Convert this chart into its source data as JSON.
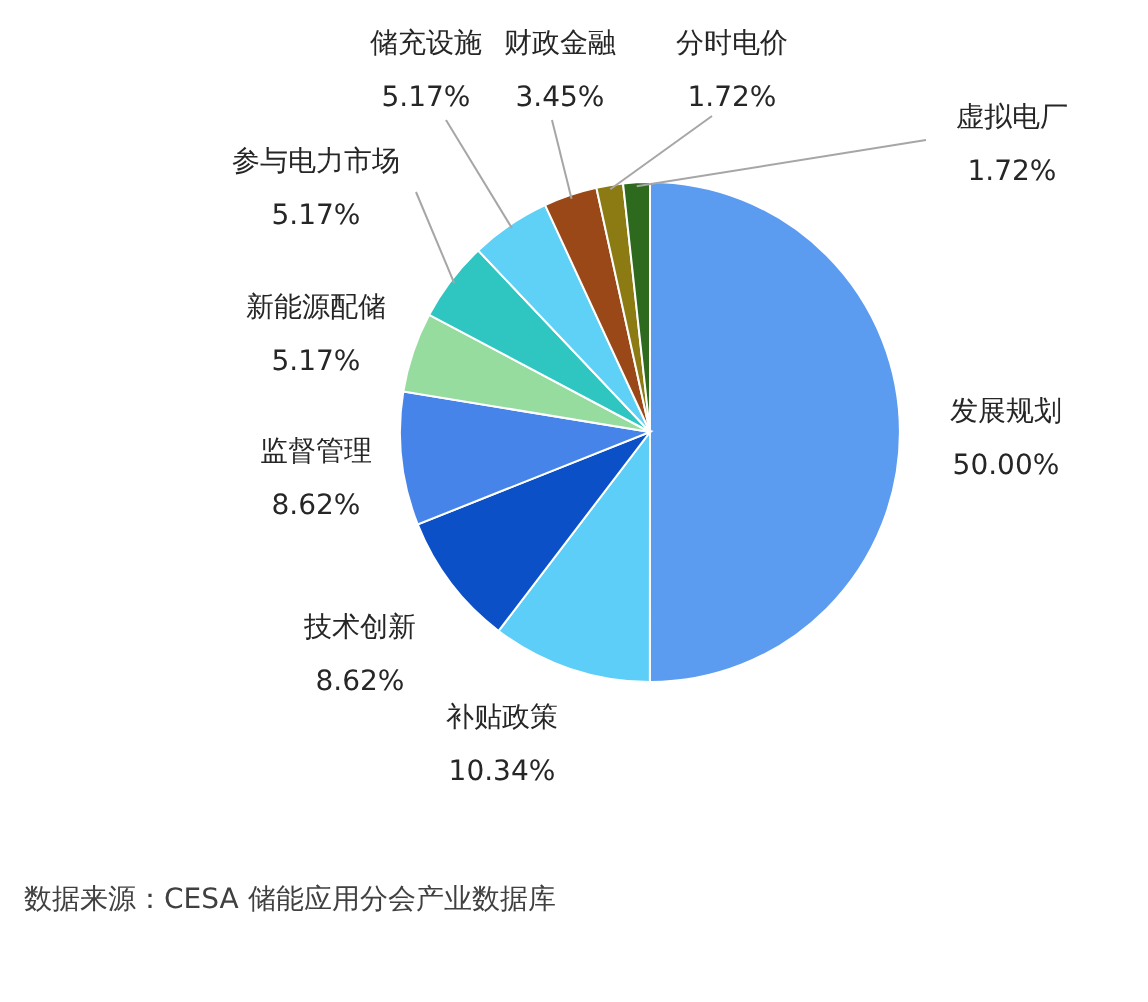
{
  "chart_data": {
    "type": "pie",
    "categories": [
      "发展规划",
      "补贴政策",
      "技术创新",
      "监督管理",
      "新能源配储",
      "参与电力市场",
      "储充设施",
      "财政金融",
      "分时电价",
      "虚拟电厂"
    ],
    "values": [
      50.0,
      10.34,
      8.62,
      8.62,
      5.17,
      5.17,
      5.17,
      3.45,
      1.72,
      1.72
    ],
    "colors": [
      "#5b9bf0",
      "#5dcef7",
      "#0c50c8",
      "#4784ea",
      "#97dc9f",
      "#2fc6c2",
      "#5fd0f6",
      "#9a4818",
      "#8c7b12",
      "#2d6a1e"
    ],
    "value_labels": [
      "50.00%",
      "10.34%",
      "8.62%",
      "8.62%",
      "5.17%",
      "5.17%",
      "5.17%",
      "3.45%",
      "1.72%",
      "1.72%"
    ],
    "annotations": [
      "数据来源：CESA 储能应用分会产业数据库"
    ]
  }
}
